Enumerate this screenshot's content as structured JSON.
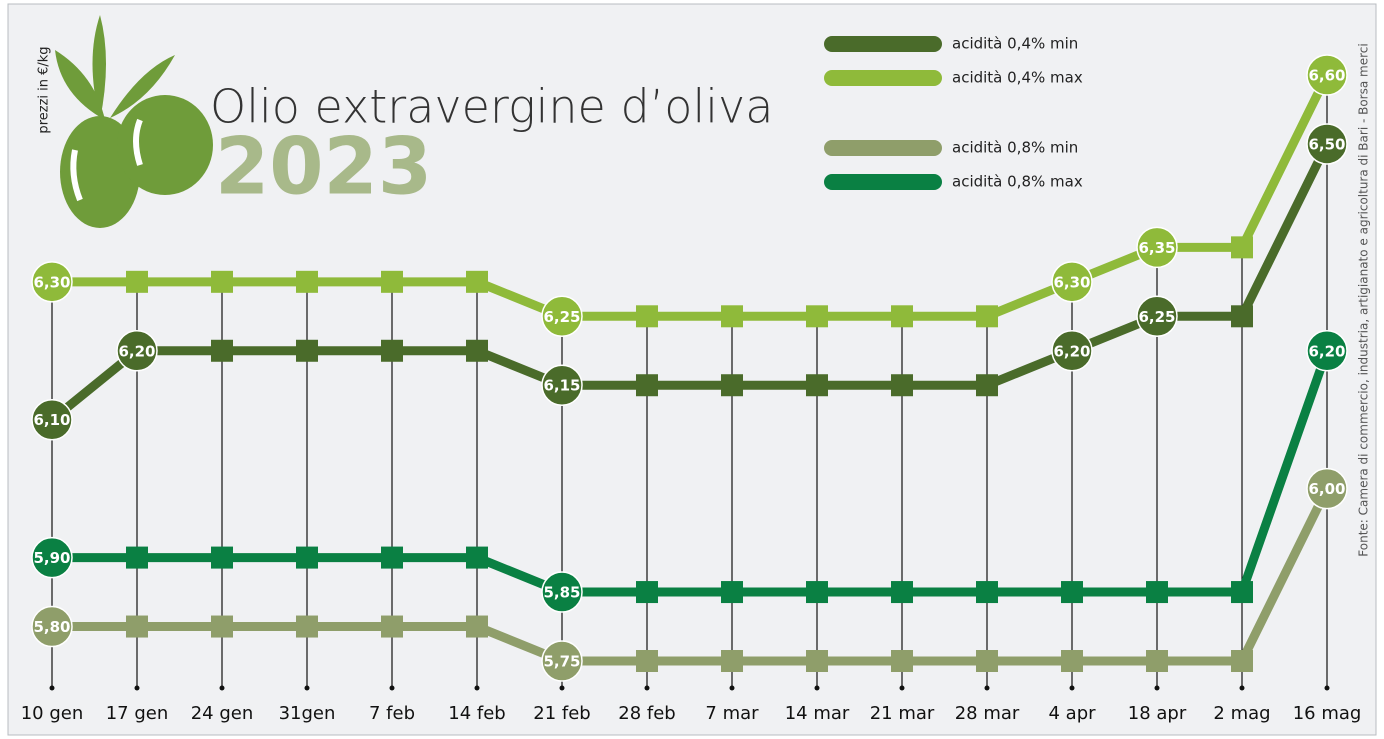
{
  "chart_data": {
    "type": "line",
    "title": "Olio extravergine d’oliva",
    "subtitle": "2023",
    "y_label": "prezzi in €/kg",
    "source": "Fonte: Camera di commercio, industria, artigianato e agricoltura di Bari - Borsa merci",
    "categories": [
      "10 gen",
      "17 gen",
      "24 gen",
      "31gen",
      "7 feb",
      "14 feb",
      "21 feb",
      "28 feb",
      "7 mar",
      "14 mar",
      "21 mar",
      "28 mar",
      "4 apr",
      "18 apr",
      "2 mag",
      "16 mag"
    ],
    "series": [
      {
        "name": "acidità 0,4% min",
        "color": "#4a6b2a",
        "values": [
          6.1,
          6.2,
          6.2,
          6.2,
          6.2,
          6.2,
          6.15,
          6.15,
          6.15,
          6.15,
          6.15,
          6.15,
          6.2,
          6.25,
          6.25,
          6.5
        ],
        "value_labels": [
          "6,10",
          "6,20",
          null,
          null,
          null,
          null,
          "6,15",
          null,
          null,
          null,
          null,
          null,
          "6,20",
          "6,25",
          null,
          "6,50"
        ]
      },
      {
        "name": "acidità 0,4% max",
        "color": "#8fba3a",
        "values": [
          6.3,
          6.3,
          6.3,
          6.3,
          6.3,
          6.3,
          6.25,
          6.25,
          6.25,
          6.25,
          6.25,
          6.25,
          6.3,
          6.35,
          6.35,
          6.6
        ],
        "value_labels": [
          "6,30",
          null,
          null,
          null,
          null,
          null,
          "6,25",
          null,
          null,
          null,
          null,
          null,
          "6,30",
          "6,35",
          null,
          "6,60"
        ]
      },
      {
        "name": "acidità 0,8% min",
        "color": "#8f9e6a",
        "values": [
          5.8,
          5.8,
          5.8,
          5.8,
          5.8,
          5.8,
          5.75,
          5.75,
          5.75,
          5.75,
          5.75,
          5.75,
          5.75,
          5.75,
          5.75,
          6.0
        ],
        "value_labels": [
          "5,80",
          null,
          null,
          null,
          null,
          null,
          "5,75",
          null,
          null,
          null,
          null,
          null,
          null,
          null,
          null,
          "6,00"
        ]
      },
      {
        "name": "acidità 0,8% max",
        "color": "#0a8043",
        "values": [
          5.9,
          5.9,
          5.9,
          5.9,
          5.9,
          5.9,
          5.85,
          5.85,
          5.85,
          5.85,
          5.85,
          5.85,
          5.85,
          5.85,
          5.85,
          6.2
        ],
        "value_labels": [
          "5,90",
          null,
          null,
          null,
          null,
          null,
          "5,85",
          null,
          null,
          null,
          null,
          null,
          null,
          null,
          null,
          "6,20"
        ]
      }
    ]
  }
}
